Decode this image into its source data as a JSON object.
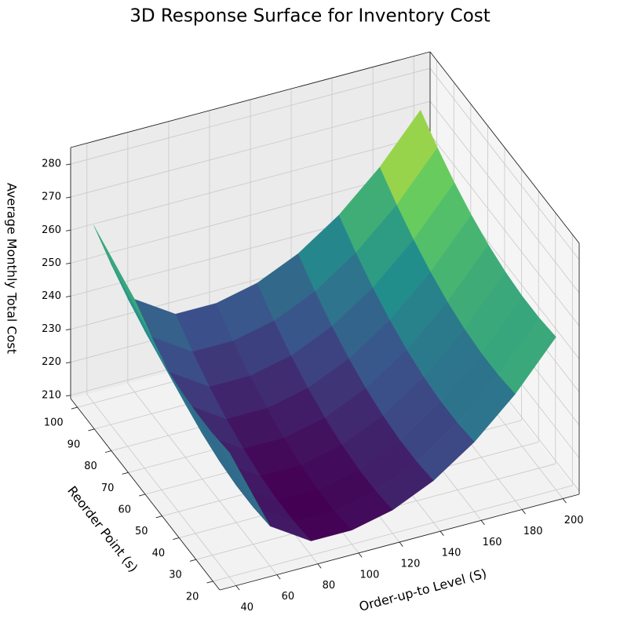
{
  "chart_data": {
    "type": "surface",
    "title": "3D Response Surface for Inventory Cost",
    "xlabel": "Order-up-to Level (S)",
    "ylabel": "Reorder Point (s)",
    "zlabel": "Average Monthly Total Cost",
    "x": [
      40,
      60,
      80,
      100,
      120,
      140,
      160,
      180,
      200
    ],
    "y": [
      20,
      30,
      40,
      50,
      60,
      70,
      80,
      90,
      100
    ],
    "z": [
      [
        246.7,
        221.1,
        213.3,
        213.3,
        216.1,
        221.7,
        230.1,
        241.3,
        255.3
      ],
      [
        245.9,
        220.3,
        212.5,
        212.5,
        215.3,
        220.9,
        229.3,
        240.5,
        254.5
      ],
      [
        245.9,
        220.3,
        212.5,
        212.5,
        215.3,
        220.9,
        229.3,
        240.5,
        254.5
      ],
      [
        246.7,
        221.1,
        213.3,
        213.3,
        216.1,
        221.7,
        230.1,
        241.3,
        255.3
      ],
      [
        248.3,
        222.7,
        214.9,
        214.9,
        217.7,
        223.3,
        231.7,
        242.9,
        256.9
      ],
      [
        250.7,
        225.1,
        217.3,
        217.3,
        220.1,
        225.7,
        234.1,
        245.3,
        259.3
      ],
      [
        253.9,
        228.3,
        220.5,
        220.5,
        223.3,
        228.9,
        237.3,
        248.5,
        262.5
      ],
      [
        257.9,
        232.3,
        224.5,
        224.5,
        227.3,
        232.9,
        241.3,
        252.5,
        266.5
      ],
      [
        262.7,
        237.1,
        229.3,
        229.3,
        232.1,
        237.7,
        246.1,
        257.3,
        271.3
      ]
    ],
    "colormap": "viridis",
    "xlim": [
      32,
      208
    ],
    "ylim": [
      16,
      104
    ],
    "zlim": [
      209,
      285
    ],
    "xticks": [
      40,
      60,
      80,
      100,
      120,
      140,
      160,
      180,
      200
    ],
    "yticks": [
      20,
      30,
      40,
      50,
      60,
      70,
      80,
      90,
      100
    ],
    "zticks": [
      210,
      220,
      230,
      240,
      250,
      260,
      270,
      280
    ],
    "grid": true
  }
}
